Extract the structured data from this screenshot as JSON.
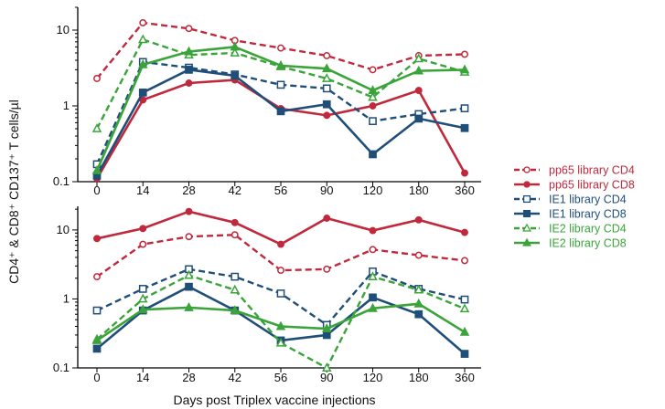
{
  "chart_data": [
    {
      "type": "line",
      "panel": "top",
      "y_scale": "log",
      "ylim": [
        0.1,
        20
      ],
      "y_ticks": [
        "0.1",
        "1",
        "10"
      ],
      "categories": [
        "0",
        "14",
        "28",
        "42",
        "56",
        "90",
        "120",
        "180",
        "360"
      ],
      "series": [
        {
          "name": "pp65 library CD4",
          "color": "#c0283c",
          "dashed": true,
          "marker": "circle",
          "values": [
            2.3,
            12.5,
            10.5,
            7.3,
            5.8,
            4.6,
            3.0,
            4.6,
            4.8
          ]
        },
        {
          "name": "pp65 library CD8",
          "color": "#c0283c",
          "dashed": false,
          "marker": "circle",
          "values": [
            0.11,
            1.2,
            2.0,
            2.2,
            0.92,
            0.75,
            1.0,
            1.6,
            0.13
          ]
        },
        {
          "name": "IE1 library CD4",
          "color": "#1f4e79",
          "dashed": true,
          "marker": "square",
          "values": [
            0.17,
            3.8,
            3.2,
            2.6,
            1.9,
            1.7,
            0.63,
            0.78,
            0.93
          ]
        },
        {
          "name": "IE1 library CD8",
          "color": "#1f4e79",
          "dashed": false,
          "marker": "square",
          "values": [
            0.12,
            1.5,
            3.0,
            2.5,
            0.85,
            1.05,
            0.23,
            0.68,
            0.51
          ]
        },
        {
          "name": "IE2 library CD4",
          "color": "#3aa43a",
          "dashed": true,
          "marker": "triangle",
          "values": [
            0.5,
            7.5,
            4.7,
            5.0,
            3.3,
            2.3,
            1.3,
            4.2,
            2.8
          ]
        },
        {
          "name": "IE2 library CD8",
          "color": "#3aa43a",
          "dashed": false,
          "marker": "triangle",
          "values": [
            0.14,
            3.5,
            5.2,
            6.0,
            3.4,
            3.1,
            1.6,
            2.9,
            3.0
          ]
        }
      ]
    },
    {
      "type": "line",
      "panel": "bottom",
      "y_scale": "log",
      "ylim": [
        0.1,
        22
      ],
      "y_ticks": [
        "0.1",
        "1",
        "10"
      ],
      "categories": [
        "0",
        "14",
        "28",
        "42",
        "56",
        "90",
        "120",
        "180",
        "360"
      ],
      "series": [
        {
          "name": "pp65 library CD4",
          "color": "#c0283c",
          "dashed": true,
          "marker": "circle",
          "values": [
            2.1,
            6.2,
            8.0,
            8.5,
            2.6,
            2.7,
            5.2,
            4.3,
            3.6
          ]
        },
        {
          "name": "pp65 library CD8",
          "color": "#c0283c",
          "dashed": false,
          "marker": "circle",
          "values": [
            7.5,
            10.5,
            18.5,
            12.8,
            6.2,
            14.8,
            9.8,
            14.0,
            9.2
          ]
        },
        {
          "name": "IE1 library CD4",
          "color": "#1f4e79",
          "dashed": true,
          "marker": "square",
          "values": [
            0.68,
            1.4,
            2.7,
            2.1,
            1.2,
            0.42,
            2.5,
            1.4,
            0.98
          ]
        },
        {
          "name": "IE1 library CD8",
          "color": "#1f4e79",
          "dashed": false,
          "marker": "square",
          "values": [
            0.19,
            0.68,
            1.5,
            0.68,
            0.25,
            0.3,
            1.05,
            0.6,
            0.16
          ]
        },
        {
          "name": "IE2 library CD4",
          "color": "#3aa43a",
          "dashed": true,
          "marker": "triangle",
          "values": [
            0.26,
            1.0,
            2.2,
            1.35,
            0.23,
            0.1,
            2.1,
            1.35,
            0.72
          ]
        },
        {
          "name": "IE2 library CD8",
          "color": "#3aa43a",
          "dashed": false,
          "marker": "triangle",
          "values": [
            0.25,
            0.7,
            0.75,
            0.68,
            0.4,
            0.37,
            0.73,
            0.85,
            0.33
          ]
        }
      ]
    }
  ],
  "figure": {
    "ylabel": "CD4⁺ & CD8⁺ CD137⁺ T cells/µl",
    "xlabel": "Days post Triplex vaccine injections",
    "legend_position": "right"
  }
}
